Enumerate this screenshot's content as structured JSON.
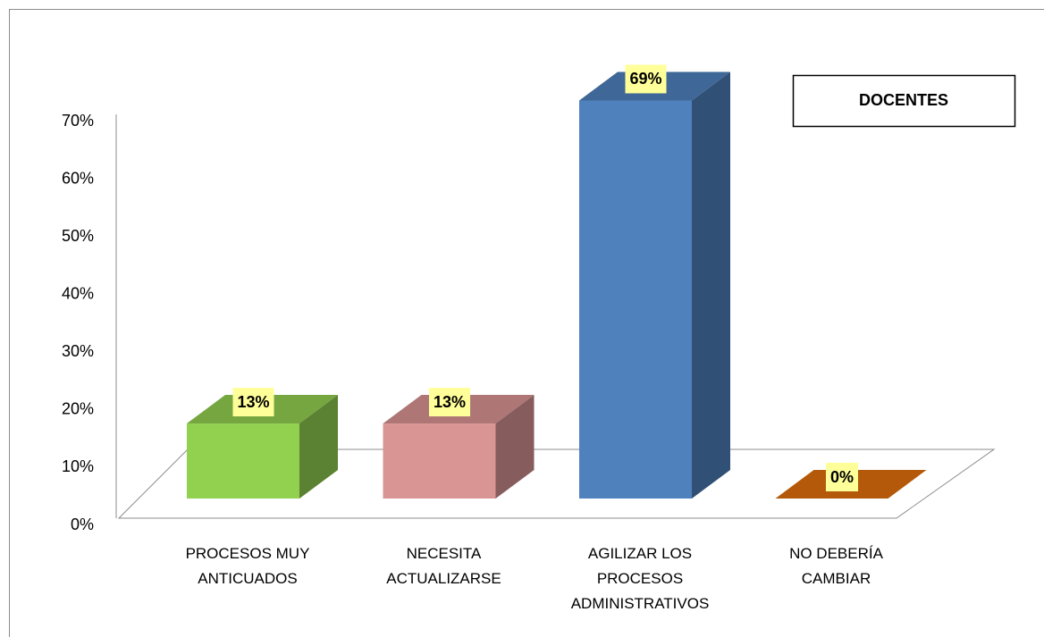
{
  "chart_data": {
    "type": "bar3d",
    "legend": "DOCENTES",
    "categories": [
      "PROCESOS MUY ANTICUADOS",
      "NECESITA ACTUALIZARSE",
      "AGILIZAR LOS PROCESOS ADMINISTRATIVOS",
      "NO DEBERÍA CAMBIAR"
    ],
    "values": [
      13,
      13,
      69,
      0
    ],
    "value_labels": [
      "13%",
      "13%",
      "69%",
      "0%"
    ],
    "colors": [
      "#92d050",
      "#d99594",
      "#4f81bd",
      "#c0600a"
    ],
    "ylim": [
      0,
      70
    ],
    "yticks": [
      {
        "value": 0,
        "label": "0%"
      },
      {
        "value": 10,
        "label": "10%"
      },
      {
        "value": 20,
        "label": "20%"
      },
      {
        "value": 30,
        "label": "30%"
      },
      {
        "value": 40,
        "label": "40%"
      },
      {
        "value": 50,
        "label": "50%"
      },
      {
        "value": 60,
        "label": "60%"
      },
      {
        "value": 70,
        "label": "70%"
      }
    ],
    "grid": false
  }
}
